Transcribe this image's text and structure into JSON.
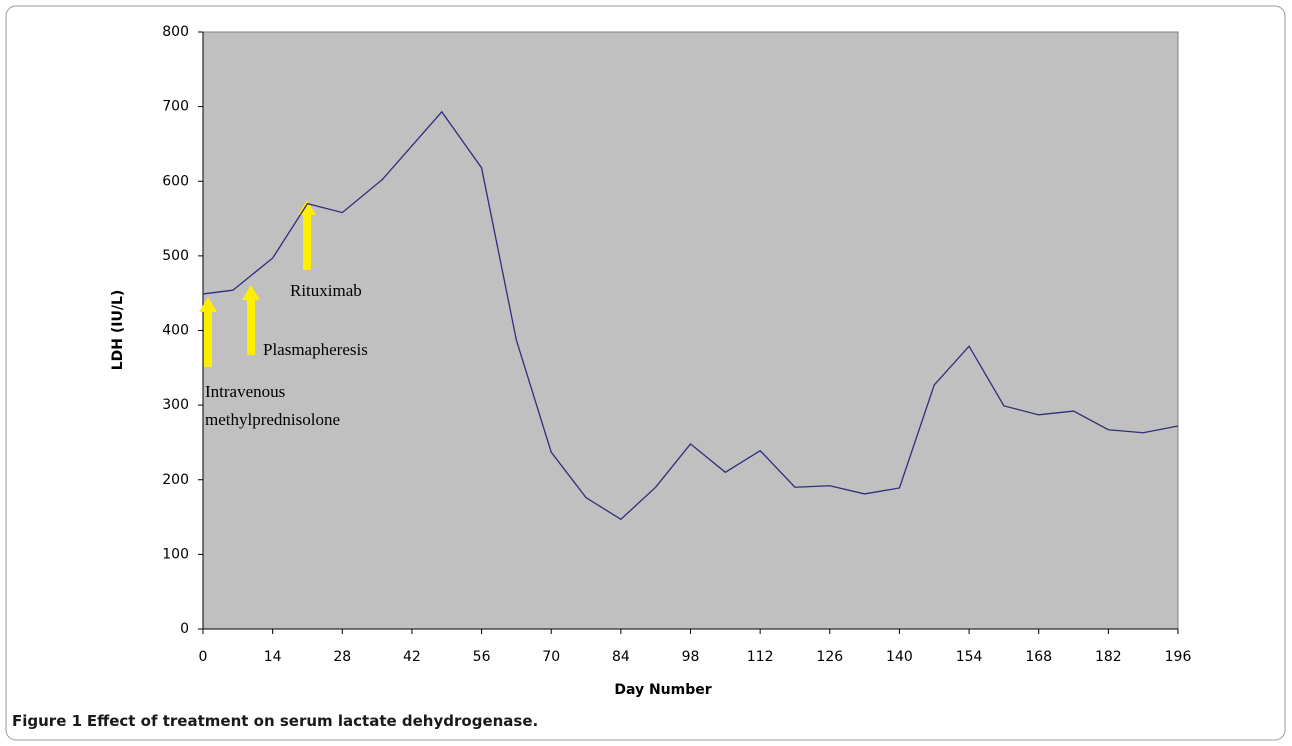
{
  "chart_data": {
    "type": "line",
    "xlabel": "Day Number",
    "ylabel": "LDH (IU/L)",
    "x": [
      0,
      6,
      14,
      21,
      28,
      36,
      48,
      56,
      63,
      70,
      77,
      84,
      91,
      98,
      105,
      112,
      119,
      126,
      133,
      140,
      147,
      154,
      161,
      168,
      175,
      182,
      189,
      196
    ],
    "series": [
      {
        "color": "#2e2e7a",
        "values": [
          449,
          454,
          497,
          570,
          558,
          602,
          693,
          618,
          387,
          237,
          176,
          147,
          190,
          248,
          210,
          239,
          190,
          192,
          181,
          189,
          327,
          379,
          299,
          287,
          292,
          267,
          263,
          272
        ]
      }
    ],
    "xlim": [
      0,
      196
    ],
    "xticks": [
      0,
      14,
      28,
      42,
      56,
      70,
      84,
      98,
      112,
      126,
      140,
      154,
      168,
      182,
      196
    ],
    "ylim": [
      0,
      800
    ],
    "yticks": [
      0,
      100,
      200,
      300,
      400,
      500,
      600,
      700,
      800
    ],
    "annotations": [
      [
        "Intravenous",
        "methylprednisolone"
      ],
      [
        "Plasmapheresis"
      ],
      [
        "Rituximab"
      ]
    ]
  },
  "caption": {
    "label": "Figure 1",
    "text": "Effect of treatment on serum lactate dehydrogenase."
  }
}
